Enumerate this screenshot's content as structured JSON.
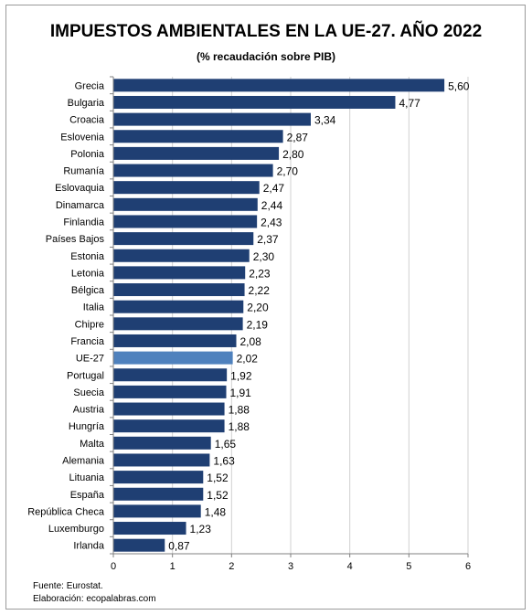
{
  "chart_data": {
    "type": "bar",
    "orientation": "horizontal",
    "title": "IMPUESTOS AMBIENTALES EN LA UE-27. AÑO 2022",
    "subtitle": "(% recaudación sobre PIB)",
    "categories": [
      "Grecia",
      "Bulgaria",
      "Croacia",
      "Eslovenia",
      "Polonia",
      "Rumanía",
      "Eslovaquia",
      "Dinamarca",
      "Finlandia",
      "Países Bajos",
      "Estonia",
      "Letonia",
      "Bélgica",
      "Italia",
      "Chipre",
      "Francia",
      "UE-27",
      "Portugal",
      "Suecia",
      "Austria",
      "Hungría",
      "Malta",
      "Alemania",
      "Lituania",
      "España",
      "República Checa",
      "Luxemburgo",
      "Irlanda"
    ],
    "values": [
      5.6,
      4.77,
      3.34,
      2.87,
      2.8,
      2.7,
      2.47,
      2.44,
      2.43,
      2.37,
      2.3,
      2.23,
      2.22,
      2.2,
      2.19,
      2.08,
      2.02,
      1.92,
      1.91,
      1.88,
      1.88,
      1.65,
      1.63,
      1.52,
      1.52,
      1.48,
      1.23,
      0.87
    ],
    "value_labels": [
      "5,60",
      "4,77",
      "3,34",
      "2,87",
      "2,80",
      "2,70",
      "2,47",
      "2,44",
      "2,43",
      "2,37",
      "2,30",
      "2,23",
      "2,22",
      "2,20",
      "2,19",
      "2,08",
      "2,02",
      "1,92",
      "1,91",
      "1,88",
      "1,88",
      "1,65",
      "1,63",
      "1,52",
      "1,52",
      "1,48",
      "1,23",
      "0,87"
    ],
    "xlim": [
      0,
      6
    ],
    "xticks": [
      0,
      1,
      2,
      3,
      4,
      5,
      6
    ],
    "grid": true,
    "colors": {
      "bar": "#1f3f73",
      "highlight": "#4f81bd",
      "grid": "#d0d0d0",
      "axis": "#808080"
    },
    "highlight_category": "UE-27"
  },
  "footer": {
    "source": "Fuente: Eurostat.",
    "elaboration": "Elaboración: ecopalabras.com"
  }
}
